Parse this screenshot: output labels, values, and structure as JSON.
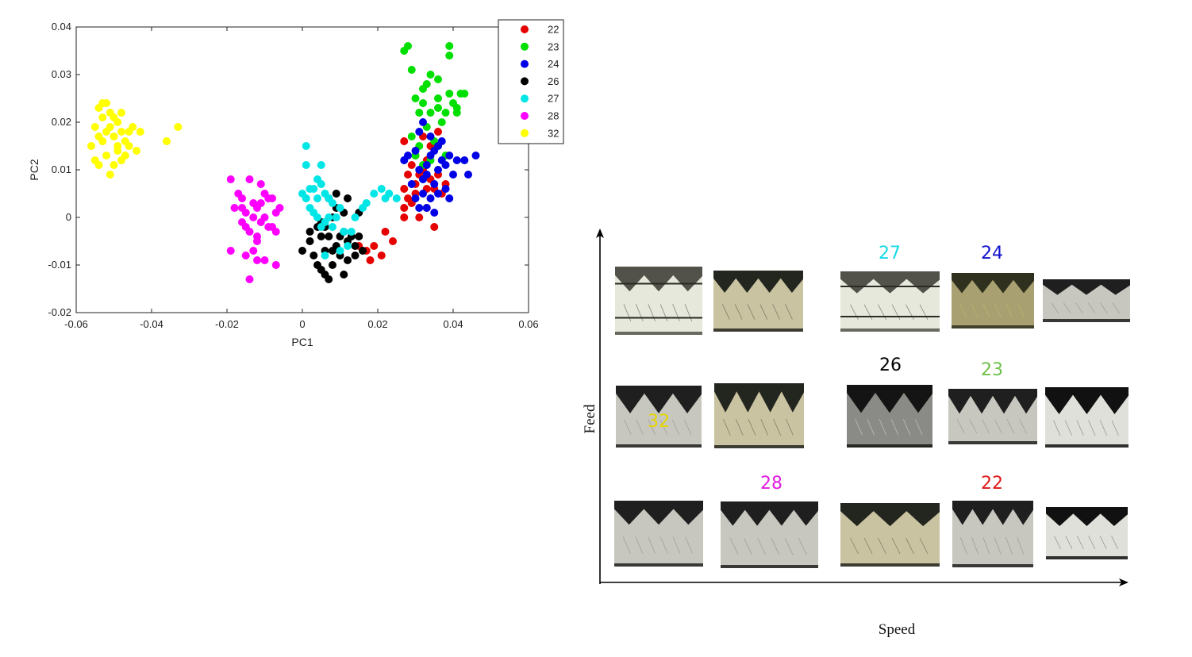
{
  "chart_data": {
    "type": "scatter",
    "xlabel": "PC1",
    "ylabel": "PC2",
    "xlim": [
      -0.06,
      0.06
    ],
    "ylim": [
      -0.02,
      0.04
    ],
    "xticks": [
      "-0.06",
      "-0.04",
      "-0.02",
      "0",
      "0.02",
      "0.04",
      "0.06"
    ],
    "yticks": [
      "-0.02",
      "-0.01",
      "0",
      "0.01",
      "0.02",
      "0.03",
      "0.04"
    ],
    "grid": false,
    "legend_position": "top-right",
    "series": [
      {
        "name": "22",
        "color": "#e60000",
        "points": [
          [
            0.015,
            -0.006
          ],
          [
            0.017,
            -0.007
          ],
          [
            0.019,
            -0.006
          ],
          [
            0.022,
            -0.003
          ],
          [
            0.024,
            -0.005
          ],
          [
            0.021,
            -0.008
          ],
          [
            0.018,
            -0.009
          ],
          [
            0.027,
            0.002
          ],
          [
            0.028,
            0.004
          ],
          [
            0.029,
            0.003
          ],
          [
            0.027,
            0.006
          ],
          [
            0.029,
            0.011
          ],
          [
            0.03,
            0.013
          ],
          [
            0.033,
            0.012
          ],
          [
            0.034,
            0.015
          ],
          [
            0.034,
            0.008
          ],
          [
            0.036,
            0.009
          ],
          [
            0.035,
            0.006
          ],
          [
            0.033,
            0.006
          ],
          [
            0.03,
            0.007
          ],
          [
            0.028,
            0.009
          ],
          [
            0.032,
            0.017
          ],
          [
            0.036,
            0.018
          ],
          [
            0.027,
            0.016
          ],
          [
            0.037,
            0.005
          ],
          [
            0.031,
            0.0
          ],
          [
            0.035,
            -0.002
          ],
          [
            0.027,
            0.0
          ],
          [
            0.033,
            0.002
          ],
          [
            0.031,
            0.009
          ],
          [
            0.038,
            0.007
          ],
          [
            0.03,
            0.005
          ],
          [
            0.032,
            0.01
          ]
        ]
      },
      {
        "name": "23",
        "color": "#00e000",
        "points": [
          [
            0.027,
            0.035
          ],
          [
            0.028,
            0.036
          ],
          [
            0.029,
            0.031
          ],
          [
            0.034,
            0.03
          ],
          [
            0.033,
            0.028
          ],
          [
            0.036,
            0.029
          ],
          [
            0.039,
            0.034
          ],
          [
            0.039,
            0.036
          ],
          [
            0.03,
            0.025
          ],
          [
            0.031,
            0.022
          ],
          [
            0.032,
            0.024
          ],
          [
            0.034,
            0.022
          ],
          [
            0.036,
            0.023
          ],
          [
            0.038,
            0.022
          ],
          [
            0.04,
            0.024
          ],
          [
            0.041,
            0.022
          ],
          [
            0.042,
            0.026
          ],
          [
            0.043,
            0.026
          ],
          [
            0.037,
            0.02
          ],
          [
            0.033,
            0.019
          ],
          [
            0.035,
            0.016
          ],
          [
            0.031,
            0.015
          ],
          [
            0.03,
            0.013
          ],
          [
            0.032,
            0.011
          ],
          [
            0.034,
            0.012
          ],
          [
            0.036,
            0.015
          ],
          [
            0.038,
            0.013
          ],
          [
            0.029,
            0.017
          ],
          [
            0.041,
            0.023
          ],
          [
            0.039,
            0.026
          ],
          [
            0.036,
            0.025
          ],
          [
            0.032,
            0.027
          ]
        ]
      },
      {
        "name": "24",
        "color": "#0000e6",
        "points": [
          [
            0.027,
            0.012
          ],
          [
            0.028,
            0.013
          ],
          [
            0.03,
            0.014
          ],
          [
            0.031,
            0.01
          ],
          [
            0.032,
            0.008
          ],
          [
            0.033,
            0.011
          ],
          [
            0.034,
            0.013
          ],
          [
            0.035,
            0.014
          ],
          [
            0.036,
            0.015
          ],
          [
            0.037,
            0.012
          ],
          [
            0.038,
            0.011
          ],
          [
            0.039,
            0.013
          ],
          [
            0.04,
            0.009
          ],
          [
            0.041,
            0.012
          ],
          [
            0.043,
            0.012
          ],
          [
            0.046,
            0.013
          ],
          [
            0.044,
            0.009
          ],
          [
            0.036,
            0.005
          ],
          [
            0.034,
            0.004
          ],
          [
            0.033,
            0.002
          ],
          [
            0.031,
            0.002
          ],
          [
            0.03,
            0.004
          ],
          [
            0.029,
            0.007
          ],
          [
            0.032,
            0.005
          ],
          [
            0.035,
            0.007
          ],
          [
            0.038,
            0.006
          ],
          [
            0.031,
            0.018
          ],
          [
            0.032,
            0.02
          ],
          [
            0.034,
            0.017
          ],
          [
            0.037,
            0.016
          ],
          [
            0.033,
            0.009
          ],
          [
            0.036,
            0.01
          ],
          [
            0.039,
            0.004
          ],
          [
            0.035,
            0.001
          ]
        ]
      },
      {
        "name": "26",
        "color": "#000000",
        "points": [
          [
            0.0,
            -0.007
          ],
          [
            0.002,
            -0.005
          ],
          [
            0.003,
            -0.008
          ],
          [
            0.004,
            -0.01
          ],
          [
            0.005,
            -0.011
          ],
          [
            0.006,
            -0.007
          ],
          [
            0.005,
            -0.004
          ],
          [
            0.006,
            -0.002
          ],
          [
            0.007,
            -0.013
          ],
          [
            0.008,
            -0.01
          ],
          [
            0.009,
            -0.006
          ],
          [
            0.01,
            -0.004
          ],
          [
            0.01,
            -0.008
          ],
          [
            0.011,
            -0.003
          ],
          [
            0.012,
            -0.005
          ],
          [
            0.013,
            -0.004
          ],
          [
            0.014,
            -0.006
          ],
          [
            0.015,
            -0.004
          ],
          [
            0.016,
            -0.007
          ],
          [
            0.012,
            -0.009
          ],
          [
            0.011,
            -0.012
          ],
          [
            0.008,
            -0.007
          ],
          [
            0.007,
            -0.004
          ],
          [
            0.005,
            -0.001
          ],
          [
            0.004,
            -0.002
          ],
          [
            0.002,
            -0.003
          ],
          [
            0.008,
            0.0
          ],
          [
            0.009,
            0.002
          ],
          [
            0.011,
            0.001
          ],
          [
            0.012,
            0.004
          ],
          [
            0.015,
            0.001
          ],
          [
            0.007,
            0.004
          ],
          [
            0.009,
            0.005
          ],
          [
            0.014,
            -0.008
          ],
          [
            0.006,
            -0.012
          ]
        ]
      },
      {
        "name": "27",
        "color": "#00e6e6",
        "points": [
          [
            0.001,
            0.015
          ],
          [
            0.001,
            0.011
          ],
          [
            0.005,
            0.011
          ],
          [
            0.0,
            0.005
          ],
          [
            0.001,
            0.004
          ],
          [
            0.002,
            0.002
          ],
          [
            0.003,
            0.006
          ],
          [
            0.004,
            0.004
          ],
          [
            0.005,
            0.007
          ],
          [
            0.006,
            0.005
          ],
          [
            0.007,
            0.004
          ],
          [
            0.008,
            0.003
          ],
          [
            0.003,
            0.001
          ],
          [
            0.004,
            0.0
          ],
          [
            0.005,
            -0.002
          ],
          [
            0.006,
            -0.001
          ],
          [
            0.007,
            0.0
          ],
          [
            0.008,
            -0.002
          ],
          [
            0.009,
            0.0
          ],
          [
            0.01,
            0.002
          ],
          [
            0.011,
            -0.003
          ],
          [
            0.012,
            -0.006
          ],
          [
            0.013,
            -0.003
          ],
          [
            0.014,
            0.0
          ],
          [
            0.016,
            0.002
          ],
          [
            0.017,
            0.003
          ],
          [
            0.006,
            -0.008
          ],
          [
            0.01,
            -0.007
          ],
          [
            0.019,
            0.005
          ],
          [
            0.021,
            0.006
          ],
          [
            0.022,
            0.004
          ],
          [
            0.023,
            0.005
          ],
          [
            0.025,
            0.004
          ],
          [
            0.004,
            0.008
          ],
          [
            0.002,
            0.006
          ]
        ]
      },
      {
        "name": "28",
        "color": "#ff00ff",
        "points": [
          [
            -0.019,
            0.008
          ],
          [
            -0.017,
            0.005
          ],
          [
            -0.016,
            0.002
          ],
          [
            -0.015,
            0.001
          ],
          [
            -0.014,
            0.008
          ],
          [
            -0.013,
            0.003
          ],
          [
            -0.012,
            0.002
          ],
          [
            -0.011,
            0.007
          ],
          [
            -0.01,
            0.005
          ],
          [
            -0.009,
            0.004
          ],
          [
            -0.008,
            0.004
          ],
          [
            -0.007,
            0.001
          ],
          [
            -0.006,
            0.002
          ],
          [
            -0.018,
            0.002
          ],
          [
            -0.016,
            -0.001
          ],
          [
            -0.015,
            -0.002
          ],
          [
            -0.014,
            -0.003
          ],
          [
            -0.013,
            0.0
          ],
          [
            -0.012,
            -0.004
          ],
          [
            -0.011,
            -0.001
          ],
          [
            -0.01,
            0.0
          ],
          [
            -0.009,
            -0.002
          ],
          [
            -0.008,
            -0.002
          ],
          [
            -0.007,
            -0.003
          ],
          [
            -0.012,
            -0.005
          ],
          [
            -0.019,
            -0.007
          ],
          [
            -0.015,
            -0.008
          ],
          [
            -0.013,
            -0.007
          ],
          [
            -0.012,
            -0.009
          ],
          [
            -0.01,
            -0.009
          ],
          [
            -0.007,
            -0.01
          ],
          [
            -0.014,
            -0.013
          ],
          [
            -0.016,
            0.004
          ],
          [
            -0.011,
            0.003
          ]
        ]
      },
      {
        "name": "32",
        "color": "#ffff00",
        "points": [
          [
            -0.056,
            0.015
          ],
          [
            -0.055,
            0.019
          ],
          [
            -0.054,
            0.023
          ],
          [
            -0.053,
            0.021
          ],
          [
            -0.052,
            0.024
          ],
          [
            -0.051,
            0.022
          ],
          [
            -0.05,
            0.021
          ],
          [
            -0.049,
            0.02
          ],
          [
            -0.048,
            0.018
          ],
          [
            -0.047,
            0.016
          ],
          [
            -0.046,
            0.018
          ],
          [
            -0.045,
            0.019
          ],
          [
            -0.044,
            0.014
          ],
          [
            -0.043,
            0.018
          ],
          [
            -0.055,
            0.012
          ],
          [
            -0.054,
            0.011
          ],
          [
            -0.052,
            0.013
          ],
          [
            -0.051,
            0.009
          ],
          [
            -0.05,
            0.011
          ],
          [
            -0.049,
            0.014
          ],
          [
            -0.048,
            0.012
          ],
          [
            -0.047,
            0.013
          ],
          [
            -0.053,
            0.016
          ],
          [
            -0.052,
            0.018
          ],
          [
            -0.05,
            0.017
          ],
          [
            -0.049,
            0.015
          ],
          [
            -0.051,
            0.019
          ],
          [
            -0.046,
            0.015
          ],
          [
            -0.054,
            0.017
          ],
          [
            -0.036,
            0.016
          ],
          [
            -0.033,
            0.019
          ],
          [
            -0.048,
            0.022
          ],
          [
            -0.053,
            0.024
          ]
        ]
      }
    ]
  },
  "figure2": {
    "x_label": "Speed",
    "y_label": "Feed",
    "rows": [
      {
        "images": [
          {
            "number": "",
            "color": "#000000",
            "style": "rings"
          },
          {
            "number": "",
            "color": "#000000",
            "style": "olive"
          },
          {
            "number": "27",
            "color": "#17d9e6",
            "style": "rings"
          },
          {
            "number": "24",
            "color": "#1010d0",
            "style": "gold"
          },
          {
            "number": "",
            "color": "#000000",
            "style": "silver"
          }
        ]
      },
      {
        "images": [
          {
            "number": "32",
            "color": "#e6d400",
            "style": "silver"
          },
          {
            "number": "",
            "color": "#000000",
            "style": "olive"
          },
          {
            "number": "26",
            "color": "#000000",
            "style": "dark"
          },
          {
            "number": "23",
            "color": "#6fc04a",
            "style": "silver"
          },
          {
            "number": "",
            "color": "#000000",
            "style": "plain"
          }
        ]
      },
      {
        "images": [
          {
            "number": "",
            "color": "#000000",
            "style": "silver"
          },
          {
            "number": "28",
            "color": "#e01de0",
            "style": "silver"
          },
          {
            "number": "",
            "color": "#000000",
            "style": "olive"
          },
          {
            "number": "22",
            "color": "#e01818",
            "style": "silver"
          },
          {
            "number": "",
            "color": "#000000",
            "style": "plain"
          }
        ]
      }
    ]
  }
}
